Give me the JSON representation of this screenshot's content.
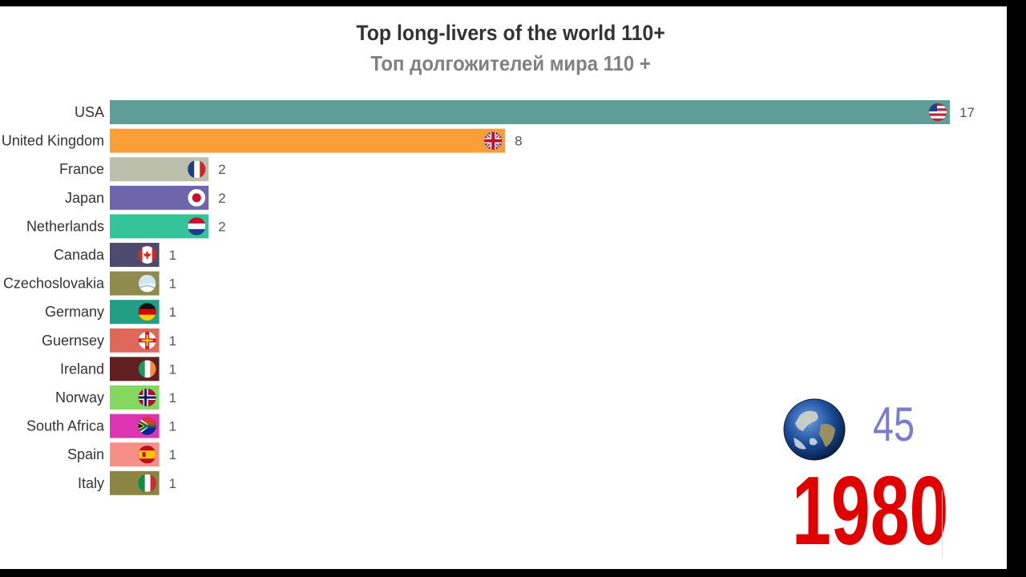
{
  "chart_data": {
    "type": "bar",
    "orientation": "horizontal",
    "title": "Top long-livers of the world 110+",
    "subtitle": "Топ долгожителей мира 110 +",
    "categories": [
      "USA",
      "United Kingdom",
      "France",
      "Japan",
      "Netherlands",
      "Canada",
      "Czechoslovakia",
      "Germany",
      "Guernsey",
      "Ireland",
      "Norway",
      "South Africa",
      "Spain",
      "Italy"
    ],
    "values": [
      17,
      8,
      2,
      2,
      2,
      1,
      1,
      1,
      1,
      1,
      1,
      1,
      1,
      1
    ],
    "value_labels": [
      "17",
      "8",
      "2",
      "2",
      "2",
      "1",
      "1",
      "1",
      "1",
      "1",
      "1",
      "1",
      "1",
      "1"
    ],
    "colors": [
      "#5e9e97",
      "#fb9e38",
      "#bdbfad",
      "#6e65ad",
      "#33c49a",
      "#4e4a6e",
      "#8f8b4e",
      "#229e86",
      "#e0685a",
      "#611f1f",
      "#84d860",
      "#dd35b2",
      "#f68f87",
      "#8b8442"
    ],
    "flags": [
      "usa-flag",
      "uk-flag",
      "france-flag",
      "japan-flag",
      "netherlands-flag",
      "canada-flag",
      "czechoslovakia-flag",
      "germany-flag",
      "guernsey-flag",
      "ireland-flag",
      "norway-flag",
      "south-africa-flag",
      "spain-flag",
      "italy-flag"
    ],
    "xlim": [
      0,
      17
    ],
    "grid": false,
    "legend": "none"
  },
  "total_count": "45",
  "year": "1980",
  "globe_icon": "earth-globe-icon"
}
